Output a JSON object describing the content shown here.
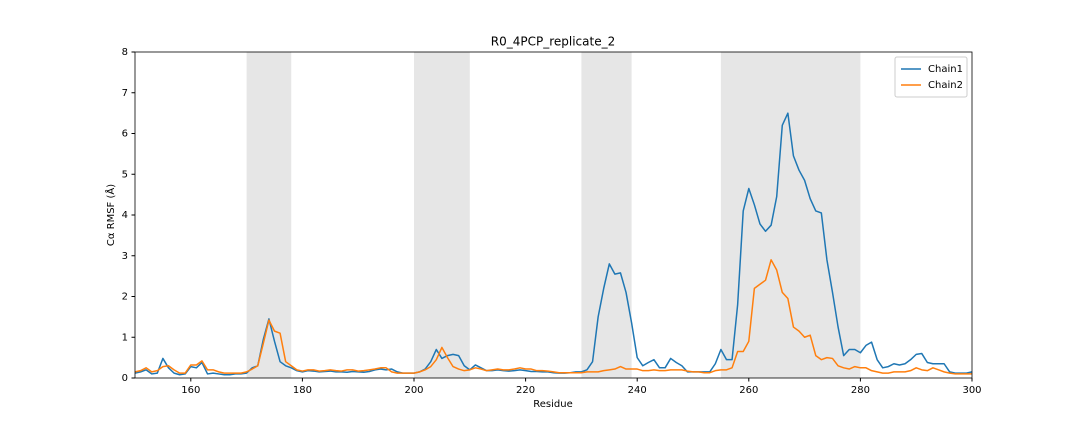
{
  "chart_data": {
    "type": "line",
    "title": "R0_4PCP_replicate_2",
    "x_label": "Residue",
    "y_label": "Cα RMSF (Å)",
    "x": [
      150,
      151,
      152,
      153,
      154,
      155,
      156,
      157,
      158,
      159,
      160,
      161,
      162,
      163,
      164,
      165,
      166,
      167,
      168,
      169,
      170,
      171,
      172,
      173,
      174,
      175,
      176,
      177,
      178,
      179,
      180,
      181,
      182,
      183,
      184,
      185,
      186,
      187,
      188,
      189,
      190,
      191,
      192,
      193,
      194,
      195,
      196,
      197,
      198,
      199,
      200,
      201,
      202,
      203,
      204,
      205,
      206,
      207,
      208,
      209,
      210,
      211,
      212,
      213,
      214,
      215,
      216,
      217,
      218,
      219,
      220,
      221,
      222,
      223,
      224,
      225,
      226,
      227,
      228,
      229,
      230,
      231,
      232,
      233,
      234,
      235,
      236,
      237,
      238,
      239,
      240,
      241,
      242,
      243,
      244,
      245,
      246,
      247,
      248,
      249,
      250,
      251,
      252,
      253,
      254,
      255,
      256,
      257,
      258,
      259,
      260,
      261,
      262,
      263,
      264,
      265,
      266,
      267,
      268,
      269,
      270,
      271,
      272,
      273,
      274,
      275,
      276,
      277,
      278,
      279,
      280,
      281,
      282,
      283,
      284,
      285,
      286,
      287,
      288,
      289,
      290,
      291,
      292,
      293,
      294,
      295,
      296,
      297,
      298,
      299,
      300
    ],
    "series": [
      {
        "name": "Chain1",
        "color": "#1f77b4",
        "values": [
          0.12,
          0.15,
          0.2,
          0.1,
          0.12,
          0.48,
          0.25,
          0.12,
          0.08,
          0.1,
          0.28,
          0.25,
          0.38,
          0.1,
          0.12,
          0.1,
          0.08,
          0.08,
          0.1,
          0.1,
          0.12,
          0.25,
          0.3,
          0.95,
          1.45,
          0.9,
          0.4,
          0.3,
          0.25,
          0.18,
          0.15,
          0.18,
          0.17,
          0.15,
          0.16,
          0.17,
          0.15,
          0.15,
          0.14,
          0.16,
          0.15,
          0.14,
          0.16,
          0.2,
          0.22,
          0.2,
          0.22,
          0.15,
          0.12,
          0.12,
          0.12,
          0.15,
          0.22,
          0.4,
          0.7,
          0.48,
          0.55,
          0.58,
          0.55,
          0.3,
          0.2,
          0.32,
          0.25,
          0.18,
          0.18,
          0.2,
          0.18,
          0.17,
          0.18,
          0.2,
          0.18,
          0.16,
          0.16,
          0.15,
          0.15,
          0.13,
          0.12,
          0.12,
          0.13,
          0.15,
          0.15,
          0.2,
          0.4,
          1.5,
          2.2,
          2.8,
          2.55,
          2.58,
          2.1,
          1.35,
          0.5,
          0.3,
          0.38,
          0.45,
          0.25,
          0.25,
          0.48,
          0.38,
          0.3,
          0.15,
          0.15,
          0.15,
          0.15,
          0.15,
          0.35,
          0.7,
          0.45,
          0.45,
          1.8,
          4.1,
          4.65,
          4.25,
          3.78,
          3.6,
          3.75,
          4.45,
          6.2,
          6.5,
          5.45,
          5.1,
          4.85,
          4.4,
          4.1,
          4.05,
          2.9,
          2.1,
          1.25,
          0.55,
          0.7,
          0.7,
          0.62,
          0.8,
          0.88,
          0.45,
          0.25,
          0.28,
          0.35,
          0.32,
          0.35,
          0.45,
          0.58,
          0.6,
          0.38,
          0.35,
          0.35,
          0.35,
          0.15,
          0.12,
          0.12,
          0.12,
          0.15
        ]
      },
      {
        "name": "Chain2",
        "color": "#ff7f0e",
        "values": [
          0.15,
          0.18,
          0.25,
          0.15,
          0.18,
          0.28,
          0.3,
          0.2,
          0.12,
          0.12,
          0.32,
          0.32,
          0.42,
          0.2,
          0.2,
          0.15,
          0.12,
          0.12,
          0.12,
          0.12,
          0.15,
          0.22,
          0.3,
          0.85,
          1.42,
          1.15,
          1.1,
          0.4,
          0.3,
          0.2,
          0.17,
          0.2,
          0.2,
          0.17,
          0.18,
          0.2,
          0.18,
          0.17,
          0.2,
          0.2,
          0.17,
          0.18,
          0.2,
          0.22,
          0.25,
          0.25,
          0.15,
          0.12,
          0.12,
          0.12,
          0.12,
          0.15,
          0.2,
          0.28,
          0.45,
          0.75,
          0.5,
          0.28,
          0.22,
          0.18,
          0.2,
          0.25,
          0.22,
          0.18,
          0.2,
          0.22,
          0.2,
          0.2,
          0.22,
          0.25,
          0.22,
          0.22,
          0.18,
          0.18,
          0.17,
          0.15,
          0.13,
          0.13,
          0.13,
          0.13,
          0.13,
          0.15,
          0.15,
          0.15,
          0.18,
          0.2,
          0.22,
          0.28,
          0.22,
          0.22,
          0.22,
          0.18,
          0.18,
          0.2,
          0.18,
          0.18,
          0.2,
          0.2,
          0.2,
          0.17,
          0.15,
          0.15,
          0.13,
          0.13,
          0.18,
          0.2,
          0.2,
          0.25,
          0.65,
          0.65,
          0.9,
          2.2,
          2.3,
          2.4,
          2.9,
          2.65,
          2.1,
          1.95,
          1.25,
          1.15,
          1.0,
          1.05,
          0.55,
          0.45,
          0.5,
          0.48,
          0.3,
          0.25,
          0.22,
          0.28,
          0.25,
          0.25,
          0.18,
          0.15,
          0.12,
          0.12,
          0.15,
          0.15,
          0.15,
          0.18,
          0.25,
          0.2,
          0.18,
          0.25,
          0.2,
          0.15,
          0.12,
          0.1,
          0.1,
          0.1,
          0.1
        ]
      }
    ],
    "shaded_regions": [
      [
        170,
        178
      ],
      [
        200,
        210
      ],
      [
        230,
        239
      ],
      [
        255,
        280
      ]
    ],
    "shade_color": "#e6e6e6",
    "xlim": [
      150,
      300
    ],
    "xticks": [
      160,
      180,
      200,
      220,
      240,
      260,
      280,
      300
    ],
    "ylim": [
      0,
      8
    ],
    "yticks": [
      0,
      1,
      2,
      3,
      4,
      5,
      6,
      7,
      8
    ],
    "grid": false,
    "legend": "upper right"
  }
}
